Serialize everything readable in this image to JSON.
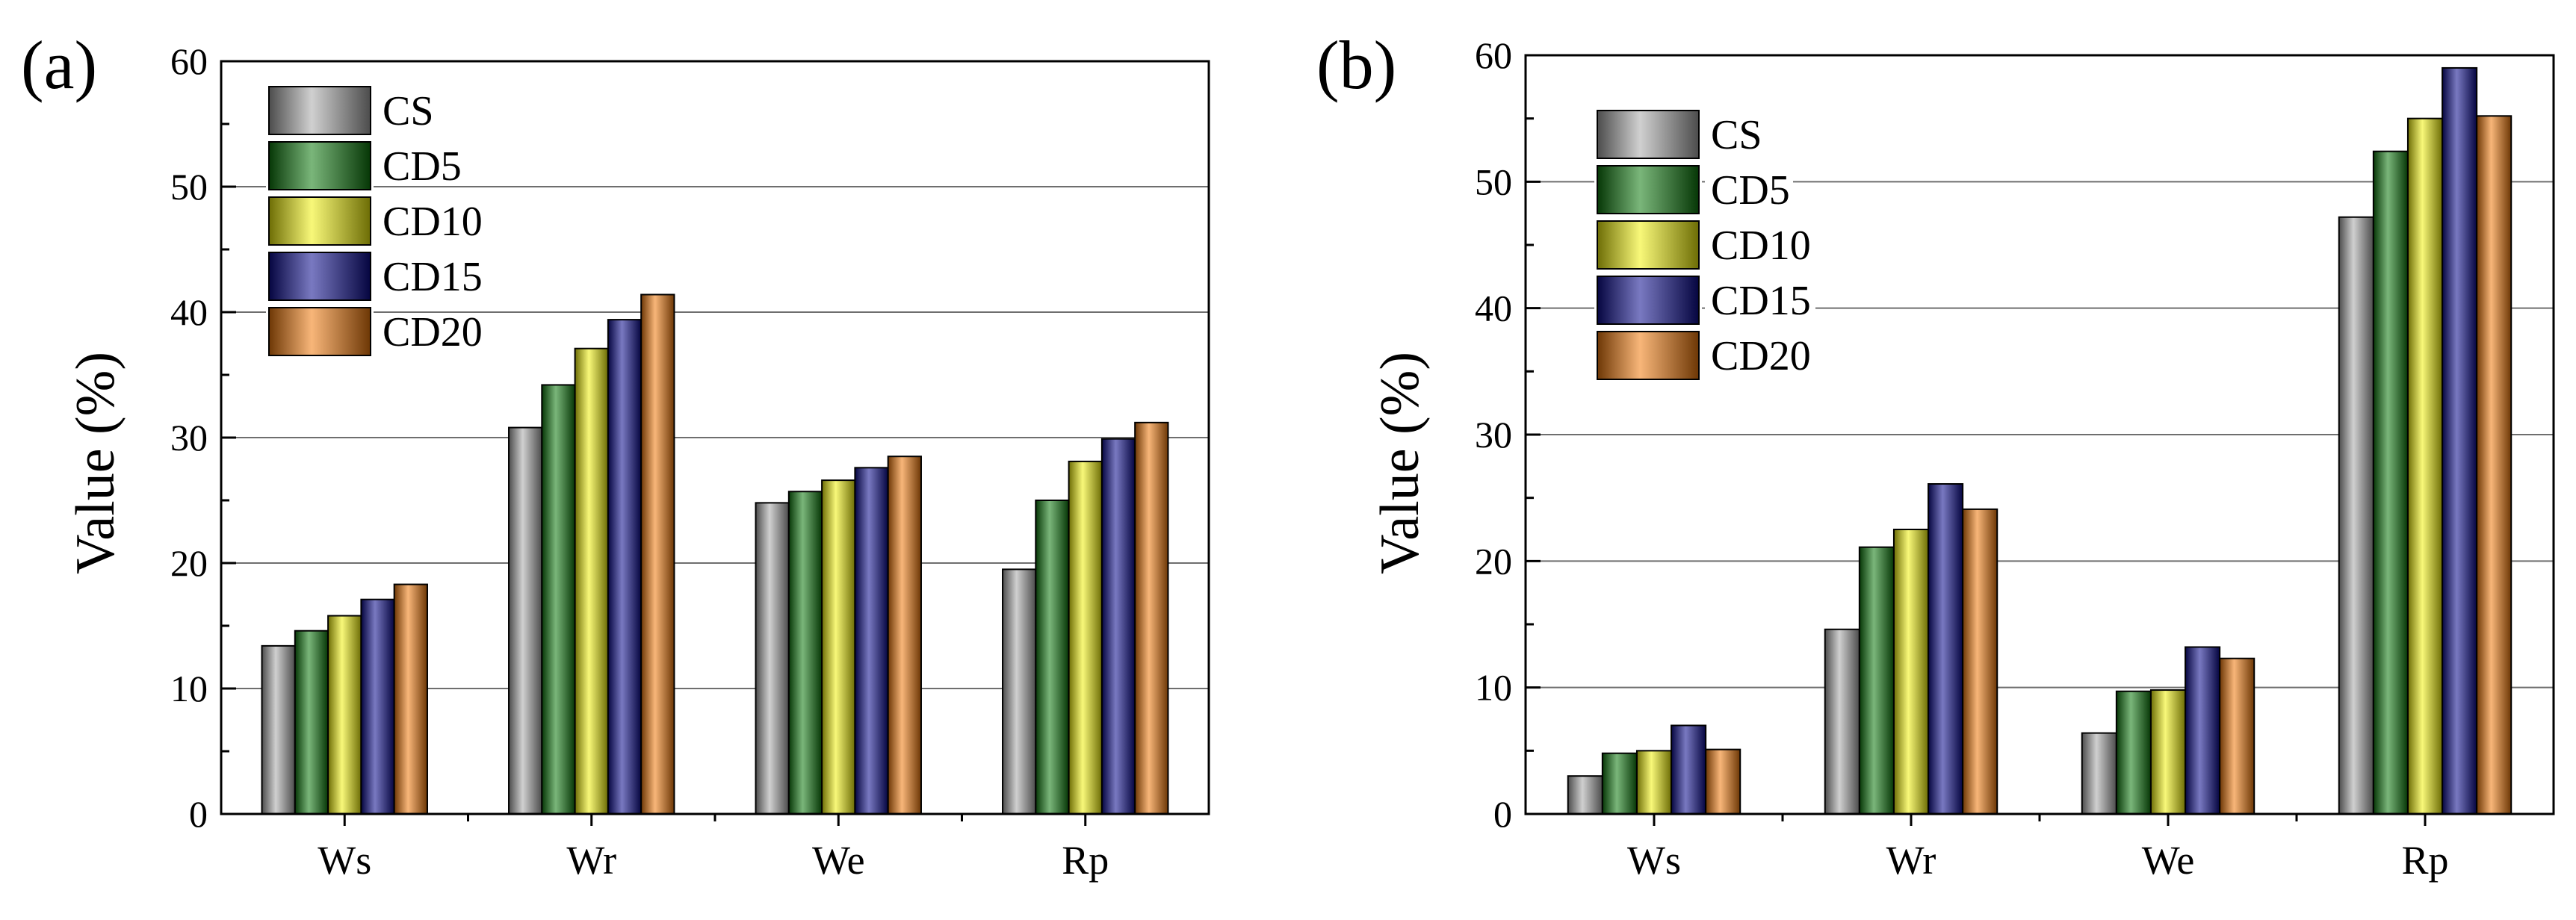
{
  "colors": {
    "CS": "#a9a9a9",
    "CD5": "#0e7a0e",
    "CD10": "#f2f20c",
    "CD15": "#0c0c8e",
    "CD20": "#f27a0c",
    "grid": "#6e6e6e",
    "frame": "#000000"
  },
  "chart_data": [
    {
      "type": "bar",
      "panel_label": "(a)",
      "ylabel": "Value (%)",
      "xlabel": "",
      "ylim": [
        0,
        60
      ],
      "yticks": [
        0,
        10,
        20,
        30,
        40,
        50,
        60
      ],
      "grid": true,
      "legend_position": "top-left",
      "categories": [
        "Ws",
        "Wr",
        "We",
        "Rp"
      ],
      "series": [
        {
          "name": "CS",
          "values": [
            13.4,
            30.8,
            24.8,
            19.5
          ]
        },
        {
          "name": "CD5",
          "values": [
            14.6,
            34.2,
            25.7,
            25.0
          ]
        },
        {
          "name": "CD10",
          "values": [
            15.8,
            37.1,
            26.6,
            28.1
          ]
        },
        {
          "name": "CD15",
          "values": [
            17.1,
            39.4,
            27.6,
            29.9
          ]
        },
        {
          "name": "CD20",
          "values": [
            18.3,
            41.4,
            28.5,
            31.2
          ]
        }
      ]
    },
    {
      "type": "bar",
      "panel_label": "(b)",
      "ylabel": "Value (%)",
      "xlabel": "",
      "ylim": [
        0,
        60
      ],
      "yticks": [
        0,
        10,
        20,
        30,
        40,
        50,
        60
      ],
      "grid": true,
      "legend_position": "top-left",
      "categories": [
        "Ws",
        "Wr",
        "We",
        "Rp"
      ],
      "series": [
        {
          "name": "CS",
          "values": [
            3.0,
            14.6,
            6.4,
            47.2
          ]
        },
        {
          "name": "CD5",
          "values": [
            4.8,
            21.1,
            9.7,
            52.4
          ]
        },
        {
          "name": "CD10",
          "values": [
            5.0,
            22.5,
            9.8,
            55.0
          ]
        },
        {
          "name": "CD15",
          "values": [
            7.0,
            26.1,
            13.2,
            59.0
          ]
        },
        {
          "name": "CD20",
          "values": [
            5.1,
            24.1,
            12.3,
            55.2
          ]
        }
      ]
    }
  ]
}
